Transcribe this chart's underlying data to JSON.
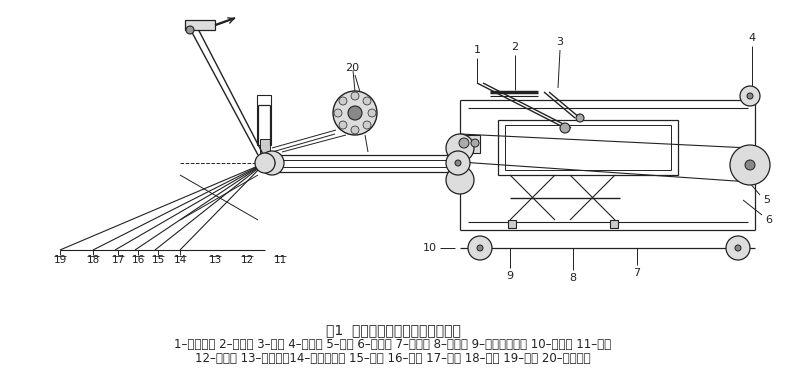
{
  "title": "图1  自动送袋装置机械结构原理图",
  "caption_line1": "1–驱动电机 2–吸袋缸 3–吸盘 4–传送轮 5–袋仓 6–传送带 7–升降机 8–油气缸 9–袋仓切换气缸 10–从动轮 11–电机",
  "caption_line2": "12–导向板 13–传送链条14–压辊定位轮 15–气缸 16–夹手 17–气缸 18–转臂 19–气缸 20–主驱动轮",
  "bg_color": "#ffffff",
  "text_color": "#222222",
  "diagram_color": "#222222",
  "title_fontsize": 10,
  "caption_fontsize": 8.5,
  "fig_width": 7.87,
  "fig_height": 3.69
}
